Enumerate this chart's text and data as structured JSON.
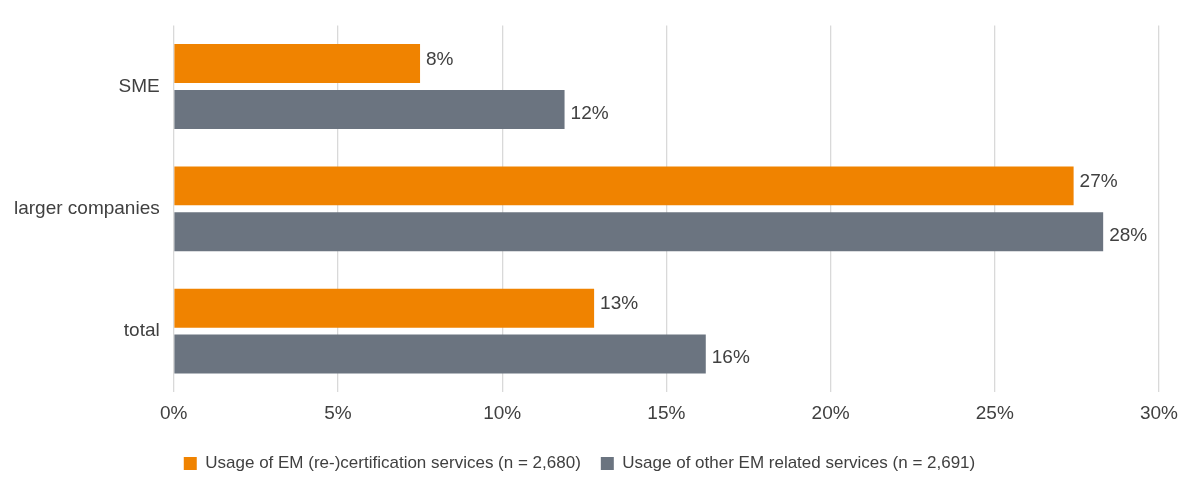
{
  "chart_data": {
    "type": "bar",
    "orientation": "horizontal",
    "categories": [
      "SME",
      "larger companies",
      "total"
    ],
    "series": [
      {
        "name": "Usage of EM (re-)certification services (n = 2,680)",
        "color": "#f08300",
        "values": [
          7.5,
          27.4,
          12.8
        ],
        "value_labels": [
          "8%",
          "27%",
          "13%"
        ]
      },
      {
        "name": "Usage of other EM related services (n = 2,691)",
        "color": "#6b7480",
        "values": [
          11.9,
          28.3,
          16.2
        ],
        "value_labels": [
          "12%",
          "28%",
          "16%"
        ]
      }
    ],
    "xlim": [
      0,
      30
    ],
    "xticks": [
      {
        "value": 0,
        "label": "0%"
      },
      {
        "value": 5,
        "label": "5%"
      },
      {
        "value": 10,
        "label": "10%"
      },
      {
        "value": 15,
        "label": "15%"
      },
      {
        "value": 20,
        "label": "20%"
      },
      {
        "value": 25,
        "label": "25%"
      },
      {
        "value": 30,
        "label": "30%"
      }
    ],
    "grid": "x",
    "legend": "bottom"
  }
}
